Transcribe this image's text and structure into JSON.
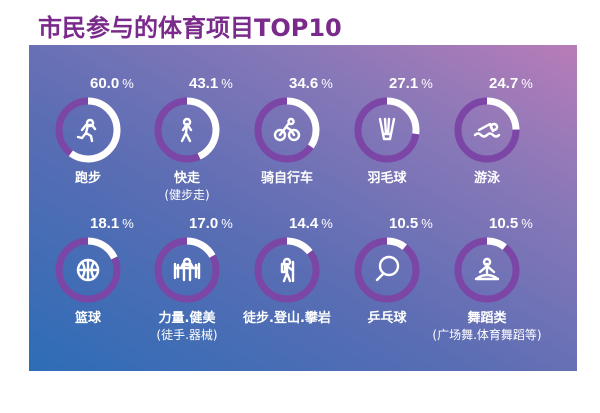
{
  "title": "市民参与的体育项目TOP10",
  "colors": {
    "title": "#7a2a8a",
    "ring_track": "#7b46a6",
    "ring_fill": "#ffffff"
  },
  "chart_data": {
    "type": "donut-grid",
    "title": "市民参与的体育项目TOP10",
    "unit": "%",
    "items": [
      {
        "label": "跑步",
        "sub": "",
        "value": 60.0,
        "icon": "running-icon"
      },
      {
        "label": "快走",
        "sub": "(健步走)",
        "value": 43.1,
        "icon": "walking-icon"
      },
      {
        "label": "骑自行车",
        "sub": "",
        "value": 34.6,
        "icon": "cycling-icon"
      },
      {
        "label": "羽毛球",
        "sub": "",
        "value": 27.1,
        "icon": "shuttlecock-icon"
      },
      {
        "label": "游泳",
        "sub": "",
        "value": 24.7,
        "icon": "swimming-icon"
      },
      {
        "label": "篮球",
        "sub": "",
        "value": 18.1,
        "icon": "basketball-icon"
      },
      {
        "label": "力量.健美",
        "sub": "(徒手.器械)",
        "value": 17.0,
        "icon": "weightlifting-icon"
      },
      {
        "label": "徒步.登山.攀岩",
        "sub": "",
        "value": 14.4,
        "icon": "hiking-icon"
      },
      {
        "label": "乒乓球",
        "sub": "",
        "value": 10.5,
        "icon": "ping-pong-icon"
      },
      {
        "label": "舞蹈类",
        "sub": "(广场舞.体育舞蹈等)",
        "value": 10.5,
        "icon": "yoga-icon"
      }
    ]
  }
}
